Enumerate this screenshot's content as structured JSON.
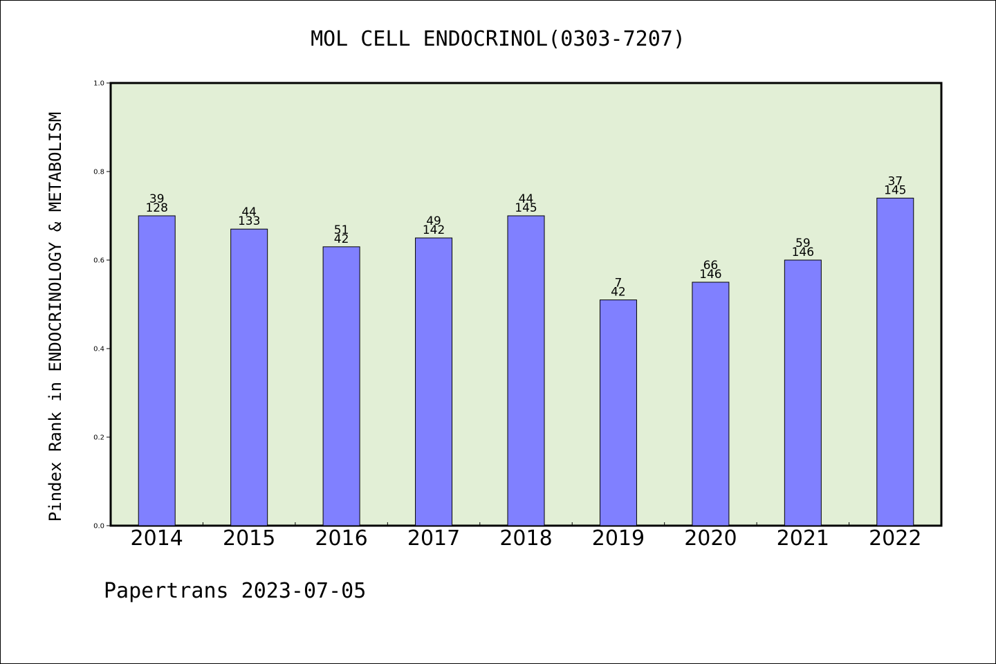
{
  "colors": {
    "plot_background": "#e2efd6",
    "bar_fill": "#8080ff",
    "bar_stroke": "#000000",
    "axis": "#000000"
  },
  "footer": {
    "text": "Papertrans 2023-07-05"
  },
  "chart_data": {
    "type": "bar",
    "title": "MOL CELL ENDOCRINOL(0303-7207)",
    "xlabel": "",
    "ylabel": "Pindex Rank in ENDOCRINOLOGY & METABOLISM",
    "ylim": [
      0,
      1.0
    ],
    "yticks": [
      "0.0",
      "0.2",
      "0.4",
      "0.6",
      "0.8",
      "1.0"
    ],
    "categories": [
      "2014",
      "2015",
      "2016",
      "2017",
      "2018",
      "2019",
      "2020",
      "2021",
      "2022"
    ],
    "values": [
      0.7,
      0.67,
      0.63,
      0.65,
      0.7,
      0.51,
      0.55,
      0.6,
      0.74
    ],
    "labels_top": [
      "39",
      "44",
      "51",
      "49",
      "44",
      "7",
      "66",
      "59",
      "37"
    ],
    "labels_bottom": [
      "128",
      "133",
      "42",
      "142",
      "145",
      "42",
      "146",
      "146",
      "145"
    ],
    "grid": false,
    "legend": "none"
  }
}
